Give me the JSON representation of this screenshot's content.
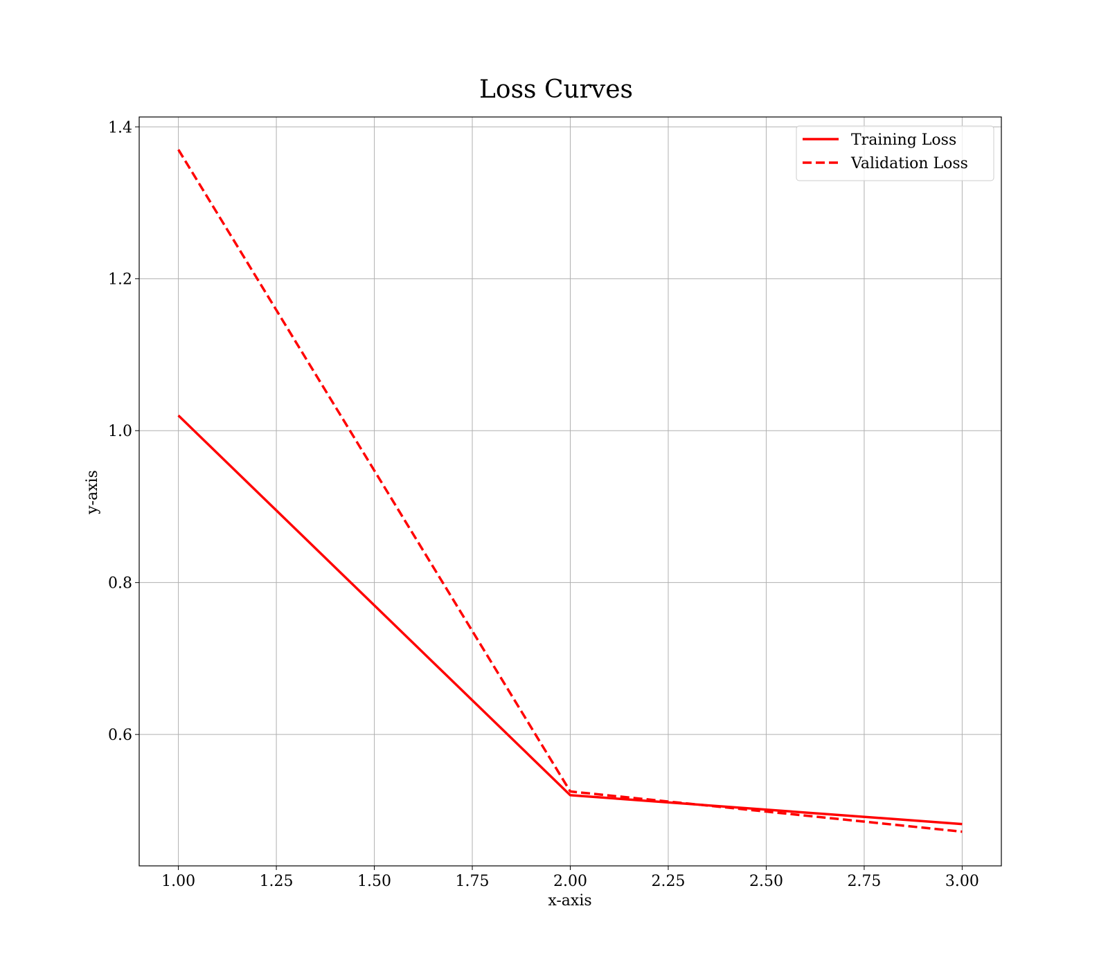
{
  "chart_data": {
    "type": "line",
    "title": "Loss Curves",
    "xlabel": "x-axis",
    "ylabel": "y-axis",
    "xlim": [
      0.9,
      3.1
    ],
    "ylim": [
      0.427,
      1.413
    ],
    "xticks": [
      1.0,
      1.25,
      1.5,
      1.75,
      2.0,
      2.25,
      2.5,
      2.75,
      3.0
    ],
    "xtick_labels": [
      "1.00",
      "1.25",
      "1.50",
      "1.75",
      "2.00",
      "2.25",
      "2.50",
      "2.75",
      "3.00"
    ],
    "yticks": [
      0.6,
      0.8,
      1.0,
      1.2,
      1.4
    ],
    "ytick_labels": [
      "0.6",
      "0.8",
      "1.0",
      "1.2",
      "1.4"
    ],
    "grid": true,
    "legend_position": "top-right",
    "x": [
      1,
      2,
      3
    ],
    "series": [
      {
        "name": "Training Loss",
        "values": [
          1.02,
          0.52,
          0.482
        ],
        "color": "#ff0000",
        "style": "solid"
      },
      {
        "name": "Validation Loss",
        "values": [
          1.37,
          0.525,
          0.472
        ],
        "color": "#ff0000",
        "style": "dashed"
      }
    ]
  }
}
